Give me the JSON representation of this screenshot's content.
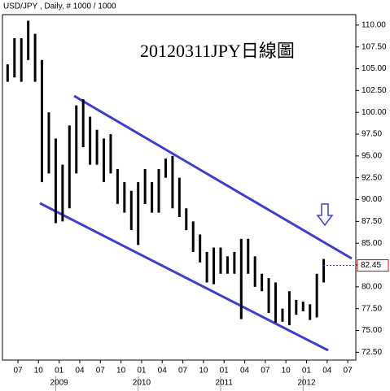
{
  "chart_data": {
    "type": "ohlc-range",
    "title": "USD/JPY , Daily, # 1000 / 1000",
    "annotation": "20120311JPY日線圖",
    "last_price": 82.45,
    "x": [
      "2008-05",
      "2008-06",
      "2008-07",
      "2008-08",
      "2008-09",
      "2008-10",
      "2008-11",
      "2008-12",
      "2009-01",
      "2009-02",
      "2009-03",
      "2009-04",
      "2009-05",
      "2009-06",
      "2009-07",
      "2009-08",
      "2009-09",
      "2009-10",
      "2009-11",
      "2009-12",
      "2010-01",
      "2010-02",
      "2010-03",
      "2010-04",
      "2010-05",
      "2010-06",
      "2010-07",
      "2010-08",
      "2010-09",
      "2010-10",
      "2010-11",
      "2010-12",
      "2011-01",
      "2011-02",
      "2011-03",
      "2011-04",
      "2011-05",
      "2011-06",
      "2011-07",
      "2011-08",
      "2011-09",
      "2011-10",
      "2011-11",
      "2011-12",
      "2012-01",
      "2012-02",
      "2012-03"
    ],
    "high": [
      105.5,
      108.5,
      108.5,
      110.5,
      109,
      106,
      100,
      97,
      94,
      98.5,
      100.8,
      101.5,
      99.5,
      98,
      97,
      97.5,
      93.5,
      92,
      91,
      92,
      93.5,
      92,
      93.5,
      94.7,
      95,
      92.5,
      89,
      87.5,
      86,
      84,
      84.5,
      84.5,
      83.5,
      84,
      85.5,
      85.5,
      83.5,
      81.5,
      81,
      80.5,
      77.5,
      79.5,
      78.5,
      78.3,
      78,
      81.5,
      83.2
    ],
    "low": [
      103.5,
      104,
      103.5,
      106,
      103.5,
      92,
      93,
      87.3,
      87.5,
      89,
      93,
      96,
      94,
      94,
      92,
      93,
      89.5,
      88.5,
      86.5,
      84.8,
      89.5,
      88.5,
      88.5,
      92.5,
      89,
      88,
      86.5,
      84,
      82.8,
      80.5,
      80.3,
      81.5,
      81.5,
      81.5,
      76.3,
      81.5,
      80,
      79.5,
      77,
      75.9,
      76,
      75.6,
      76.8,
      77.2,
      76.2,
      76.5,
      80.5
    ],
    "color": "#000000",
    "ylim": [
      71.6,
      111.2
    ],
    "yticks": [
      {
        "value": 72.5,
        "label": "72.50"
      },
      {
        "value": 75,
        "label": "75.00"
      },
      {
        "value": 77.5,
        "label": "77.50"
      },
      {
        "value": 80,
        "label": "80.00"
      },
      {
        "value": 82.5,
        "label": "82.50"
      },
      {
        "value": 85,
        "label": "85.00"
      },
      {
        "value": 87.5,
        "label": "87.50"
      },
      {
        "value": 90,
        "label": "90.00"
      },
      {
        "value": 92.5,
        "label": "92.50"
      },
      {
        "value": 95,
        "label": "95.00"
      },
      {
        "value": 97.5,
        "label": "97.50"
      },
      {
        "value": 100,
        "label": "100.00"
      },
      {
        "value": 102.5,
        "label": "102.50"
      },
      {
        "value": 105,
        "label": "105.00"
      },
      {
        "value": 107.5,
        "label": "107.50"
      },
      {
        "value": 110,
        "label": "110.00"
      }
    ],
    "xticks": [
      {
        "value": "2008-07",
        "label": "07"
      },
      {
        "value": "2008-10",
        "label": "10"
      },
      {
        "value": "2009-01",
        "label": "01"
      },
      {
        "value": "2009-04",
        "label": "04"
      },
      {
        "value": "2009-07",
        "label": "07"
      },
      {
        "value": "2009-10",
        "label": "10"
      },
      {
        "value": "2010-01",
        "label": "01"
      },
      {
        "value": "2010-04",
        "label": "04"
      },
      {
        "value": "2010-07",
        "label": "07"
      },
      {
        "value": "2010-10",
        "label": "10"
      },
      {
        "value": "2011-01",
        "label": "01"
      },
      {
        "value": "2011-04",
        "label": "04"
      },
      {
        "value": "2011-07",
        "label": "07"
      },
      {
        "value": "2011-10",
        "label": "10"
      },
      {
        "value": "2012-01",
        "label": "01"
      },
      {
        "value": "2012-04",
        "label": "04"
      },
      {
        "value": "2012-07",
        "label": "07"
      }
    ],
    "year_labels": [
      {
        "value": "2009-01",
        "label": "2009"
      },
      {
        "value": "2010-01",
        "label": "2010"
      },
      {
        "value": "2011-01",
        "label": "2011"
      },
      {
        "value": "2012-01",
        "label": "2012"
      }
    ]
  }
}
